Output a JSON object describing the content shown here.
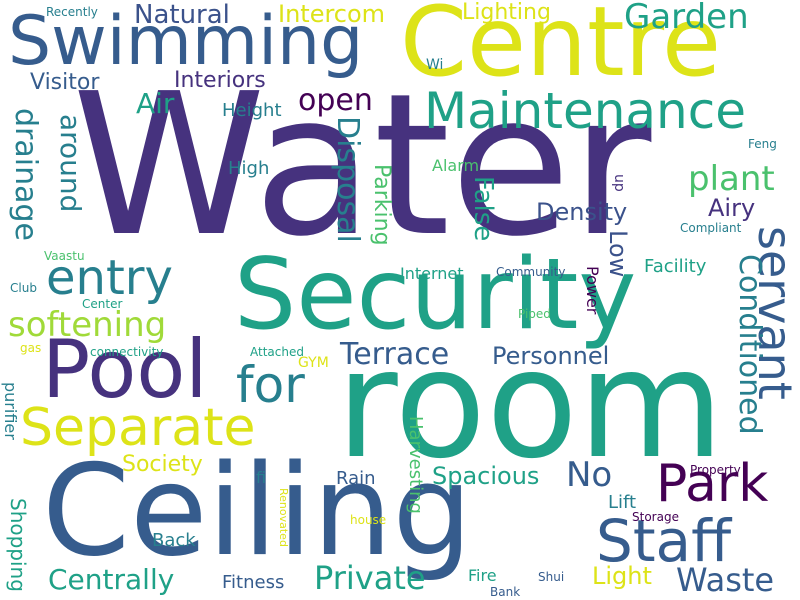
{
  "palette": {
    "dark-purple": "#46327e",
    "deep-violet": "#440154",
    "blue": "#365c8d",
    "slate-blue": "#3b528b",
    "teal-blue": "#277f8e",
    "teal": "#1fa187",
    "green": "#4ac16d",
    "light-green": "#a0da39",
    "yellow": "#dde318"
  },
  "words": [
    {
      "name": "word-water",
      "text": "Water",
      "color": "dark-purple"
    },
    {
      "name": "word-room",
      "text": "room",
      "color": "teal"
    },
    {
      "name": "word-ceiling",
      "text": "Ceiling",
      "color": "blue"
    },
    {
      "name": "word-security",
      "text": "Security",
      "color": "teal"
    },
    {
      "name": "word-centre",
      "text": "Centre",
      "color": "yellow"
    },
    {
      "name": "word-swimming",
      "text": "Swimming",
      "color": "blue"
    },
    {
      "name": "word-pool",
      "text": "Pool",
      "color": "dark-purple"
    },
    {
      "name": "word-separate",
      "text": "Separate",
      "color": "yellow"
    },
    {
      "name": "word-maintenance",
      "text": "Maintenance",
      "color": "teal"
    },
    {
      "name": "word-staff",
      "text": "Staff",
      "color": "blue"
    },
    {
      "name": "word-park",
      "text": "Park",
      "color": "deep-violet"
    },
    {
      "name": "word-servant",
      "text": "servant",
      "color": "blue"
    },
    {
      "name": "word-for",
      "text": "for",
      "color": "teal-blue"
    },
    {
      "name": "word-entry",
      "text": "entry",
      "color": "teal-blue"
    },
    {
      "name": "word-private",
      "text": "Private",
      "color": "teal"
    },
    {
      "name": "word-waste",
      "text": "Waste",
      "color": "blue"
    },
    {
      "name": "word-centrally",
      "text": "Centrally",
      "color": "teal"
    },
    {
      "name": "word-garden",
      "text": "Garden",
      "color": "teal"
    },
    {
      "name": "word-softening",
      "text": "softening",
      "color": "light-green"
    },
    {
      "name": "word-plant",
      "text": "plant",
      "color": "green"
    },
    {
      "name": "word-disposal",
      "text": "Disposal",
      "color": "teal-blue"
    },
    {
      "name": "word-drainage",
      "text": "drainage",
      "color": "teal-blue"
    },
    {
      "name": "word-conditioned",
      "text": "Conditioned",
      "color": "teal-blue"
    },
    {
      "name": "word-terrace",
      "text": "Terrace",
      "color": "blue"
    },
    {
      "name": "word-open",
      "text": "open",
      "color": "deep-violet"
    },
    {
      "name": "word-no",
      "text": "No",
      "color": "blue"
    },
    {
      "name": "word-around",
      "text": "around",
      "color": "teal-blue"
    },
    {
      "name": "word-false",
      "text": "False",
      "color": "teal"
    },
    {
      "name": "word-intercom",
      "text": "Intercom",
      "color": "yellow"
    },
    {
      "name": "word-natural",
      "text": "Natural",
      "color": "slate-blue"
    },
    {
      "name": "word-visitor",
      "text": "Visitor",
      "color": "blue"
    },
    {
      "name": "word-air",
      "text": "Air",
      "color": "teal"
    },
    {
      "name": "word-interiors",
      "text": "Interiors",
      "color": "dark-purple"
    },
    {
      "name": "word-lighting",
      "text": "Lighting",
      "color": "yellow"
    },
    {
      "name": "word-density",
      "text": "Density",
      "color": "slate-blue"
    },
    {
      "name": "word-airy",
      "text": "Airy",
      "color": "dark-purple"
    },
    {
      "name": "word-personnel",
      "text": "Personnel",
      "color": "blue"
    },
    {
      "name": "word-spacious",
      "text": "Spacious",
      "color": "teal"
    },
    {
      "name": "word-society",
      "text": "Society",
      "color": "yellow"
    },
    {
      "name": "word-light",
      "text": "Light",
      "color": "yellow"
    },
    {
      "name": "word-low",
      "text": "Low",
      "color": "slate-blue"
    },
    {
      "name": "word-parking",
      "text": "Parking",
      "color": "green"
    },
    {
      "name": "word-height",
      "text": "Height",
      "color": "teal-blue"
    },
    {
      "name": "word-high",
      "text": "High",
      "color": "teal-blue"
    },
    {
      "name": "word-facility",
      "text": "Facility",
      "color": "teal"
    },
    {
      "name": "word-shopping",
      "text": "Shopping",
      "color": "teal"
    },
    {
      "name": "word-fitness",
      "text": "Fitness",
      "color": "blue"
    },
    {
      "name": "word-back",
      "text": "Back",
      "color": "teal-blue"
    },
    {
      "name": "word-rain",
      "text": "Rain",
      "color": "blue"
    },
    {
      "name": "word-harvesting",
      "text": "Harvesting",
      "color": "green"
    },
    {
      "name": "word-lift",
      "text": "Lift",
      "color": "teal-blue"
    },
    {
      "name": "word-purifier",
      "text": "purifier",
      "color": "teal-blue"
    },
    {
      "name": "word-alarm",
      "text": "Alarm",
      "color": "green"
    },
    {
      "name": "word-internet",
      "text": "Internet",
      "color": "teal"
    },
    {
      "name": "word-power",
      "text": "Power",
      "color": "deep-violet"
    },
    {
      "name": "word-fire",
      "text": "Fire",
      "color": "teal"
    },
    {
      "name": "word-fi",
      "text": "fi",
      "color": "teal-blue"
    },
    {
      "name": "word-gym",
      "text": "GYM",
      "color": "yellow"
    },
    {
      "name": "word-up",
      "text": "up",
      "color": "dark-purple"
    },
    {
      "name": "word-wi",
      "text": "Wi",
      "color": "teal-blue"
    },
    {
      "name": "word-recently",
      "text": "Recently",
      "color": "teal-blue"
    },
    {
      "name": "word-feng",
      "text": "Feng",
      "color": "teal-blue"
    },
    {
      "name": "word-compliant",
      "text": "Compliant",
      "color": "teal-blue"
    },
    {
      "name": "word-vaastu",
      "text": "Vaastu",
      "color": "green"
    },
    {
      "name": "word-community",
      "text": "Community",
      "color": "blue"
    },
    {
      "name": "word-club",
      "text": "Club",
      "color": "teal-blue"
    },
    {
      "name": "word-center",
      "text": "Center",
      "color": "teal"
    },
    {
      "name": "word-piped",
      "text": "Piped",
      "color": "green"
    },
    {
      "name": "word-gas",
      "text": "gas",
      "color": "yellow"
    },
    {
      "name": "word-connectivity",
      "text": "connectivity",
      "color": "teal"
    },
    {
      "name": "word-attached",
      "text": "Attached",
      "color": "teal"
    },
    {
      "name": "word-property",
      "text": "Property",
      "color": "deep-violet"
    },
    {
      "name": "word-renovated",
      "text": "Renovated",
      "color": "yellow"
    },
    {
      "name": "word-house",
      "text": "house",
      "color": "yellow"
    },
    {
      "name": "word-storage",
      "text": "Storage",
      "color": "deep-violet"
    },
    {
      "name": "word-shui",
      "text": "Shui",
      "color": "blue"
    },
    {
      "name": "word-bank",
      "text": "Bank",
      "color": "blue"
    }
  ]
}
